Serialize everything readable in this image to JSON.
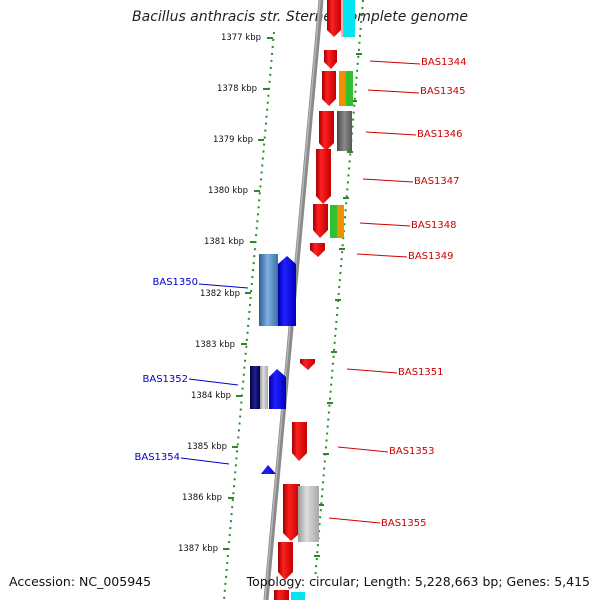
{
  "title": "Bacillus anthracis str. Sterne, complete genome",
  "footer": {
    "accession": "Accession: NC_005945",
    "summary": "Topology: circular; Length: 5,228,663 bp; Genes: 5,415"
  },
  "ruler": [
    {
      "label": "1377 kbp"
    },
    {
      "label": "1378 kbp"
    },
    {
      "label": "1379 kbp"
    },
    {
      "label": "1380 kbp"
    },
    {
      "label": "1381 kbp"
    },
    {
      "label": "1382 kbp"
    },
    {
      "label": "1383 kbp"
    },
    {
      "label": "1384 kbp"
    },
    {
      "label": "1385 kbp"
    },
    {
      "label": "1386 kbp"
    },
    {
      "label": "1387 kbp"
    }
  ],
  "genes": {
    "forward_color": "#ff0000",
    "reverse_color": "#0000ff",
    "reverse_label_color": "#0000cc",
    "right_labels": [
      "BAS1344",
      "BAS1345",
      "BAS1346",
      "BAS1347",
      "BAS1348",
      "BAS1349",
      "BAS1351",
      "BAS1353",
      "BAS1355"
    ],
    "left_labels": [
      "BAS1350",
      "BAS1352",
      "BAS1354"
    ]
  },
  "cog_colors": {
    "cyan": "#00e5f0",
    "orange": "#f09000",
    "green": "#30c030",
    "gray": "#707070",
    "light_gray": "#b8b8b8",
    "steel_blue": "#4a86c0",
    "navy": "#101070"
  }
}
